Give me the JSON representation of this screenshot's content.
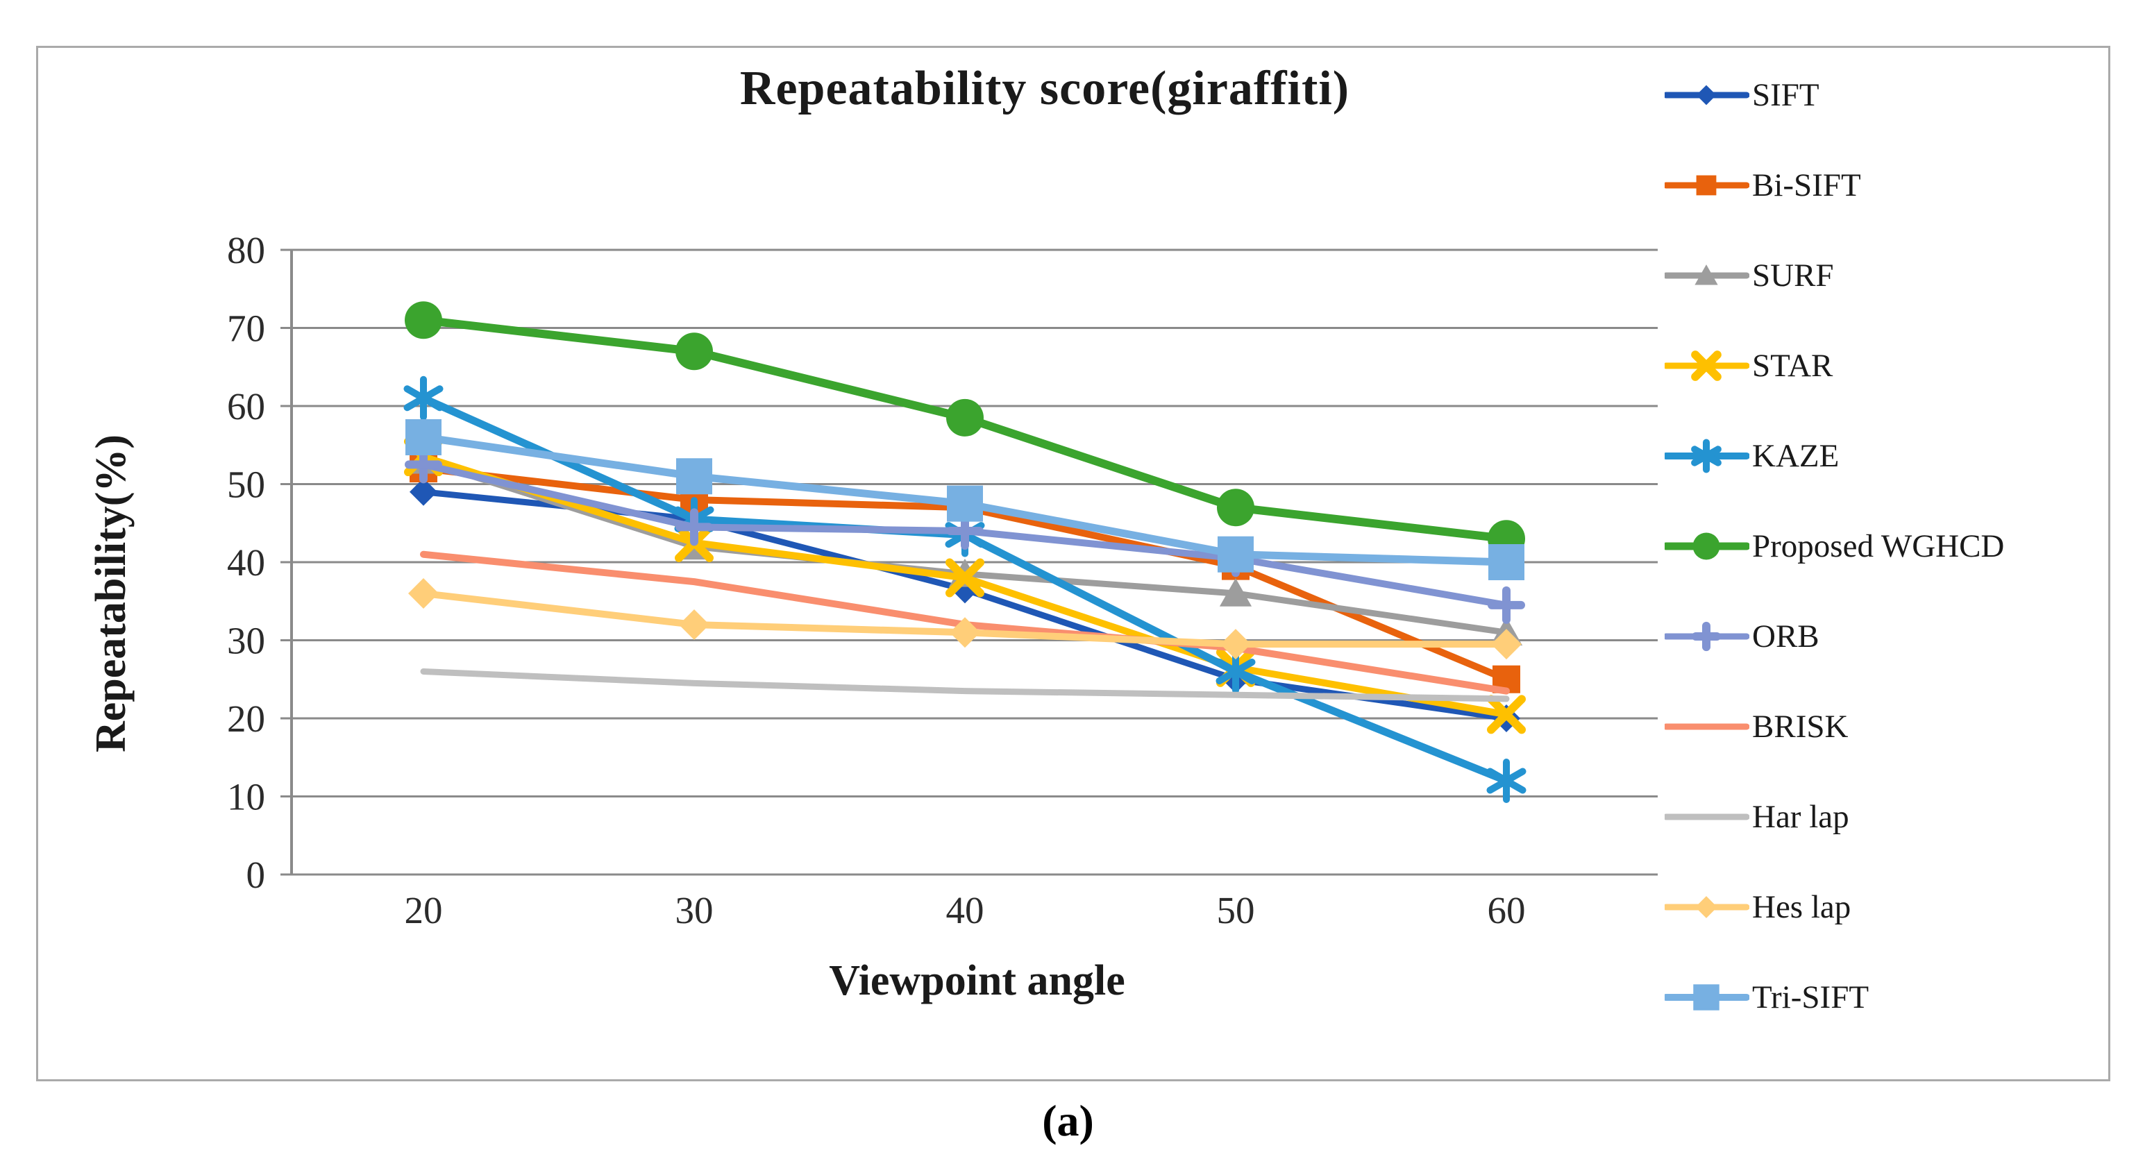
{
  "figure": {
    "title": "Repeatability score(giraffiti)",
    "y_axis_label": "Repeatability(%)",
    "x_axis_label": "Viewpoint angle",
    "caption": "(a)"
  },
  "chart_data": {
    "type": "line",
    "title": "Repeatability score(giraffiti)",
    "xlabel": "Viewpoint angle",
    "ylabel": "Repeatability(%)",
    "categories": [
      20,
      30,
      40,
      50,
      60
    ],
    "ylim": [
      0,
      80
    ],
    "y_ticks": [
      80,
      70,
      60,
      50,
      40,
      30,
      20,
      10,
      0
    ],
    "grid": "horizontal-gridlines",
    "gridline_color": "#8a8a8a",
    "legend_position": "right",
    "series": [
      {
        "name": "SIFT",
        "color": "#1f57b5",
        "marker": "diamond",
        "values": [
          49,
          45.5,
          36.5,
          25,
          20
        ]
      },
      {
        "name": "Bi-SIFT",
        "color": "#e8620d",
        "marker": "square",
        "values": [
          52,
          48,
          47,
          39.5,
          25
        ]
      },
      {
        "name": "SURF",
        "color": "#9d9d9d",
        "marker": "triangle",
        "values": [
          53,
          42,
          38.5,
          36,
          31
        ]
      },
      {
        "name": "STAR",
        "color": "#fec000",
        "marker": "x",
        "values": [
          53.5,
          42.5,
          38,
          26.5,
          20.5
        ]
      },
      {
        "name": "KAZE",
        "color": "#2493d1",
        "marker": "asterisk",
        "values": [
          61,
          45.5,
          43.5,
          26,
          12
        ]
      },
      {
        "name": "Proposed WGHCD",
        "color": "#3ba42e",
        "marker": "circle",
        "values": [
          71,
          67,
          58.5,
          47,
          43
        ]
      },
      {
        "name": "ORB",
        "color": "#8093d2",
        "marker": "plus",
        "values": [
          52.5,
          44.5,
          44,
          40.5,
          34.5
        ]
      },
      {
        "name": "BRISK",
        "color": "#f98e6e",
        "marker": "none",
        "values": [
          41,
          37.5,
          32,
          29,
          23.5
        ]
      },
      {
        "name": "Har lap",
        "color": "#bfbfbf",
        "marker": "none",
        "values": [
          26,
          24.5,
          23.5,
          23,
          22.5
        ]
      },
      {
        "name": "Hes lap",
        "color": "#ffce79",
        "marker": "diamond",
        "values": [
          36,
          32,
          31,
          29.5,
          29.5
        ]
      },
      {
        "name": "Tri-SIFT",
        "color": "#77b0e2",
        "marker": "square",
        "values": [
          56,
          51,
          47.5,
          41,
          40
        ]
      }
    ]
  }
}
